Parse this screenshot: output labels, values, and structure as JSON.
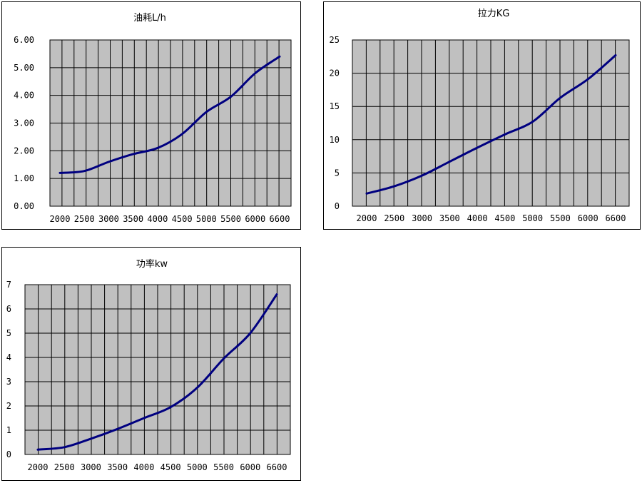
{
  "chart_data": [
    {
      "type": "line",
      "title": "油耗L/h",
      "x": [
        2000,
        2500,
        3000,
        3500,
        4000,
        4500,
        5000,
        5500,
        6000,
        6600
      ],
      "x_tick_labels": [
        "2000",
        "2500",
        "3000",
        "3500",
        "4000",
        "4500",
        "5000",
        "5500",
        "6000",
        "6600"
      ],
      "y_tick_labels": [
        "6.00",
        "5.00",
        "4.00",
        "3.00",
        "2.00",
        "1.00",
        "0.00"
      ],
      "ylim": [
        0,
        6
      ],
      "series": [
        {
          "values": [
            1.2,
            1.27,
            1.6,
            1.88,
            2.1,
            2.6,
            3.4,
            3.95,
            4.8,
            5.4
          ]
        }
      ],
      "grid": true,
      "line_color": "#000080",
      "plot_background": "#c0c0c0"
    },
    {
      "type": "line",
      "title": "拉力KG",
      "x": [
        2000,
        2500,
        3000,
        3500,
        4000,
        4500,
        5000,
        5500,
        6000,
        6600
      ],
      "x_tick_labels": [
        "2000",
        "2500",
        "3000",
        "3500",
        "4000",
        "4500",
        "5000",
        "5500",
        "6000",
        "6600"
      ],
      "y_tick_labels": [
        "25",
        "20",
        "15",
        "10",
        "5",
        "0"
      ],
      "ylim": [
        0,
        25
      ],
      "series": [
        {
          "values": [
            1.9,
            3.0,
            4.6,
            6.7,
            8.8,
            10.8,
            12.7,
            16.3,
            19.1,
            22.7
          ]
        }
      ],
      "grid": true,
      "line_color": "#000080",
      "plot_background": "#c0c0c0"
    },
    {
      "type": "line",
      "title": "功率kw",
      "x": [
        2000,
        2500,
        3000,
        3500,
        4000,
        4500,
        5000,
        5500,
        6000,
        6600
      ],
      "x_tick_labels": [
        "2000",
        "2500",
        "3000",
        "3500",
        "4000",
        "4500",
        "5000",
        "5500",
        "6000",
        "6600"
      ],
      "y_tick_labels": [
        "7",
        "6",
        "5",
        "4",
        "3",
        "2",
        "1",
        "0"
      ],
      "ylim": [
        0,
        7
      ],
      "series": [
        {
          "values": [
            0.2,
            0.3,
            0.65,
            1.05,
            1.5,
            1.95,
            2.75,
            3.95,
            5.0,
            6.6
          ]
        }
      ],
      "grid": true,
      "line_color": "#000080",
      "plot_background": "#c0c0c0"
    }
  ]
}
